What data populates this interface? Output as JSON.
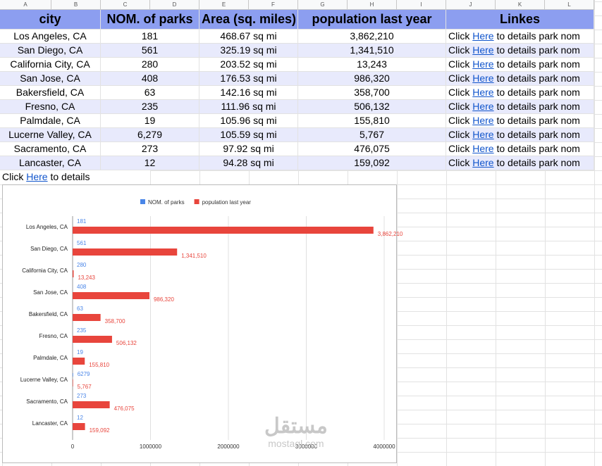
{
  "columns": [
    "A",
    "B",
    "C",
    "D",
    "E",
    "F",
    "G",
    "H",
    "I",
    "J",
    "K",
    "L"
  ],
  "table": {
    "header": [
      "city",
      "NOM. of parks",
      "Area (sq. miles)",
      "population last year",
      "Linkes"
    ],
    "rows": [
      [
        "Los Angeles, CA",
        "181",
        "468.67 sq mi",
        "3,862,210",
        [
          "Click",
          "Here",
          "to details park nom"
        ]
      ],
      [
        "San Diego, CA",
        "561",
        "325.19 sq mi",
        "1,341,510",
        [
          "Click",
          "Here",
          "to details park nom"
        ]
      ],
      [
        "California City, CA",
        "280",
        "203.52 sq mi",
        "13,243",
        [
          "Click",
          "Here",
          "to details park nom"
        ]
      ],
      [
        "San Jose, CA",
        "408",
        "176.53 sq mi",
        "986,320",
        [
          "Click",
          "Here",
          "to details park nom"
        ]
      ],
      [
        "Bakersfield, CA",
        "63",
        "142.16 sq mi",
        "358,700",
        [
          "Click",
          "Here",
          "to details park nom"
        ]
      ],
      [
        "Fresno, CA",
        "235",
        "111.96 sq mi",
        "506,132",
        [
          "Click",
          "Here",
          "to details park nom"
        ]
      ],
      [
        "Palmdale, CA",
        "19",
        "105.96 sq mi",
        "155,810",
        [
          "Click",
          "Here",
          "to details park nom"
        ]
      ],
      [
        "Lucerne Valley, CA",
        "6,279",
        "105.59 sq mi",
        "5,767",
        [
          "Click",
          "Here",
          "to details park nom"
        ]
      ],
      [
        "Sacramento, CA",
        "273",
        "97.92 sq mi",
        "476,075",
        [
          "Click",
          "Here",
          "to details park nom"
        ]
      ],
      [
        "Lancaster, CA",
        "12",
        "94.28 sq mi",
        "159,092",
        [
          "Click",
          "Here",
          "to details park nom"
        ]
      ]
    ],
    "footer": [
      "Click",
      "Here",
      "to details"
    ]
  },
  "chart": {
    "type": "bar",
    "orientation": "horizontal",
    "categories": [
      "Los Angeles, CA",
      "San Diego, CA",
      "California City, CA",
      "San Jose, CA",
      "Bakersfield, CA",
      "Fresno, CA",
      "Palmdale, CA",
      "Lucerne Valley, CA",
      "Sacramento, CA",
      "Lancaster, CA"
    ],
    "series": [
      {
        "name": "NOM. of parks",
        "color": "#4a86e8",
        "values": [
          181,
          561,
          280,
          408,
          63,
          235,
          19,
          6279,
          273,
          12
        ]
      },
      {
        "name": "population last year",
        "color": "#e8453c",
        "values": [
          3862210,
          1341510,
          13243,
          986320,
          358700,
          506132,
          155810,
          5767,
          476075,
          159092
        ],
        "value_labels": [
          "3,862,210",
          "1,341,510",
          "13,243",
          "986,320",
          "358,700",
          "506,132",
          "155,810",
          "5,767",
          "476,075",
          "159,092"
        ]
      }
    ],
    "xlim": [
      0,
      4000000
    ],
    "xticks": [
      0,
      1000000,
      2000000,
      3000000,
      4000000
    ],
    "grid": true,
    "legend": "top"
  },
  "watermark": {
    "arabic": "مستقل",
    "latin": "mostaql.com"
  }
}
